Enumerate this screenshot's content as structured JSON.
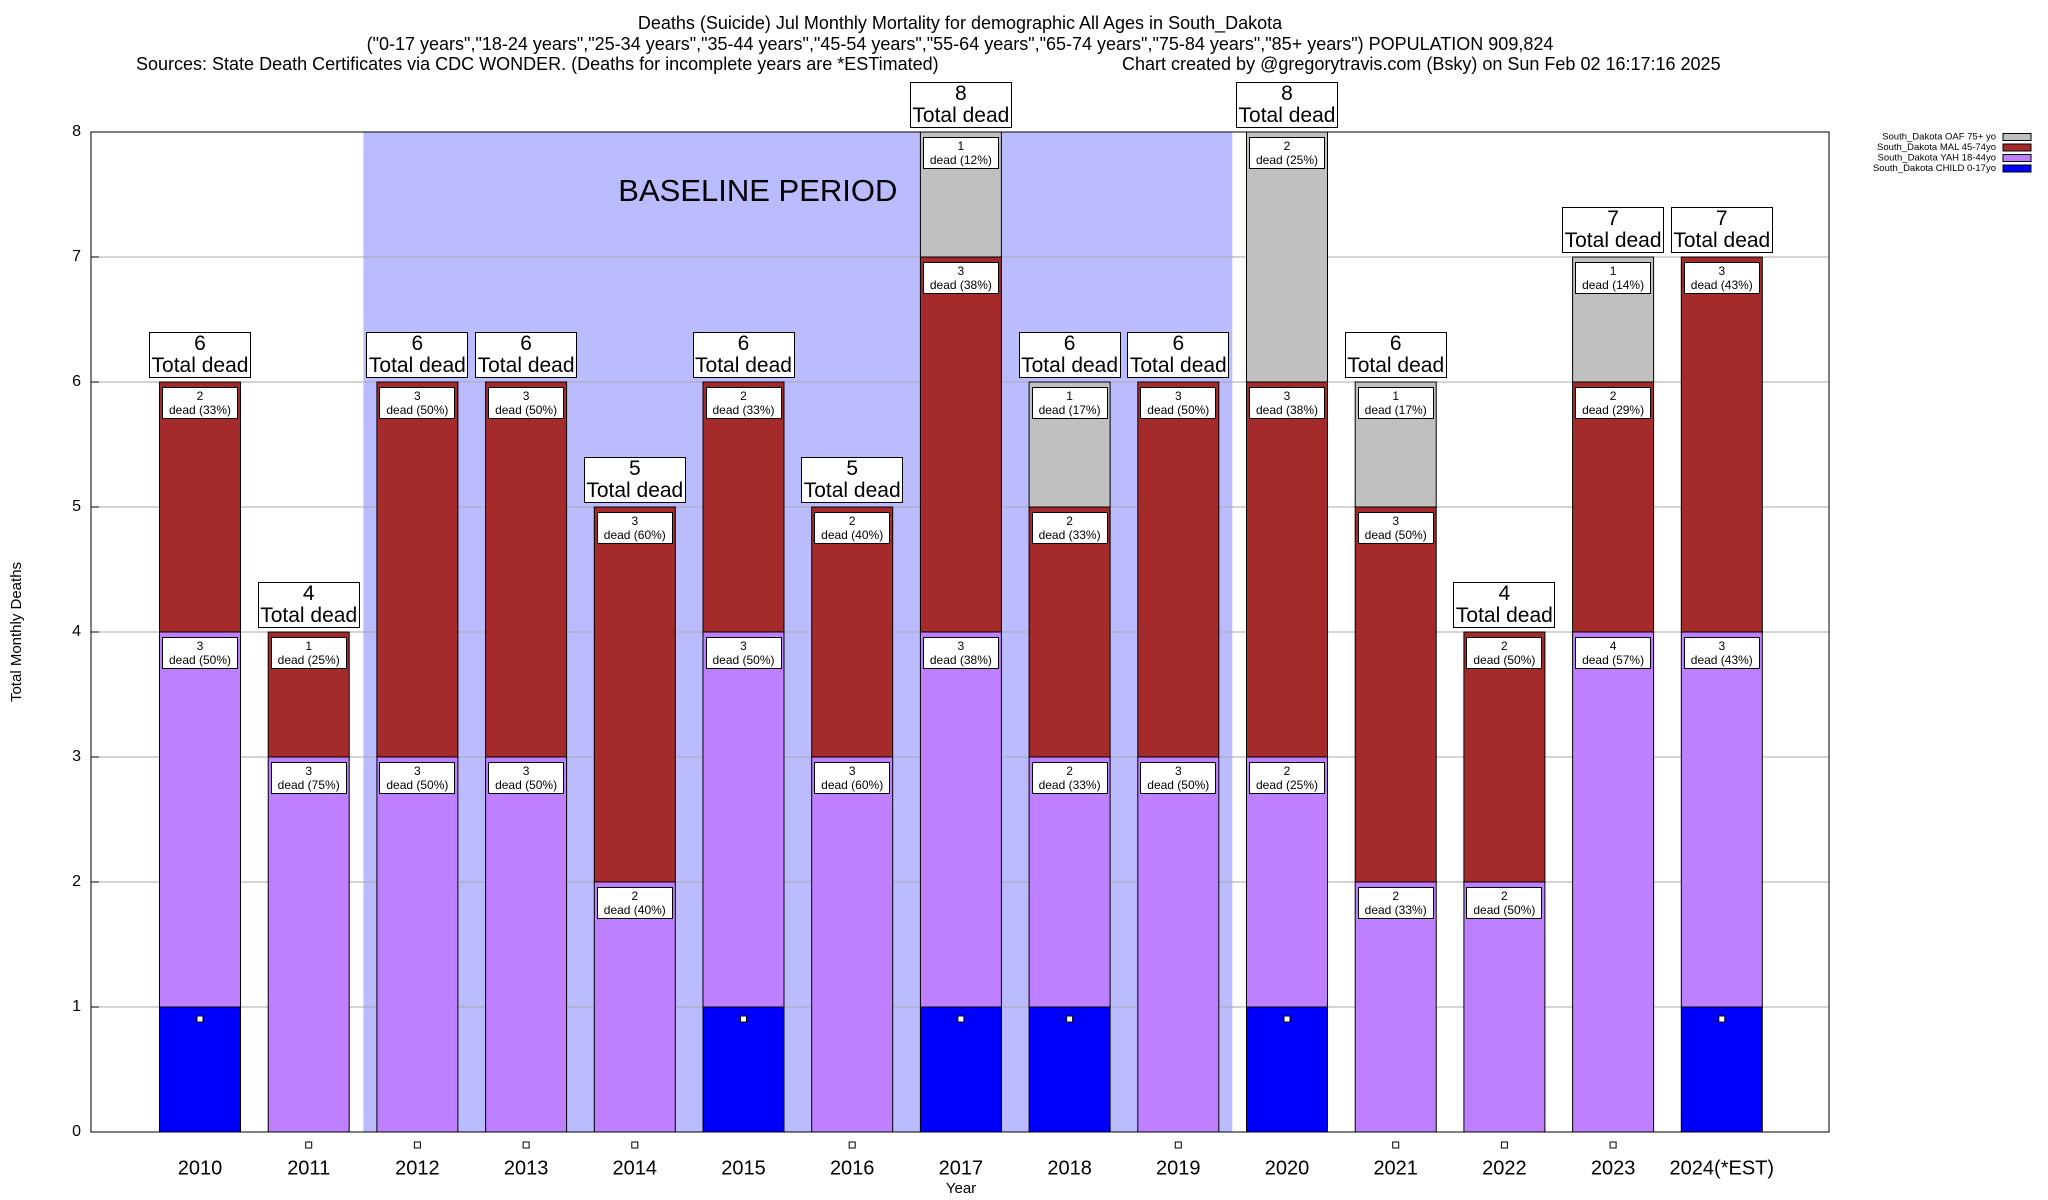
{
  "chart_data": {
    "type": "stacked_bar",
    "title": "Deaths (Suicide) Jul Monthly Mortality for demographic All Ages in South_Dakota",
    "subtitle": "(\"0-17 years\",\"18-24 years\",\"25-34 years\",\"35-44 years\",\"45-54 years\",\"55-64 years\",\"65-74 years\",\"75-84 years\",\"85+ years\") POPULATION 909,824",
    "source": "Sources: State Death Certificates via CDC WONDER. (Deaths for incomplete years are *ESTimated)",
    "credit": "Chart created by @gregorytravis.com (Bsky) on Sun Feb 02 16:17:16 2025",
    "x_label": "Year",
    "y_label": "Total Monthly Deaths",
    "categories": [
      "2010",
      "2011",
      "2012",
      "2013",
      "2014",
      "2015",
      "2016",
      "2017",
      "2018",
      "2019",
      "2020",
      "2021",
      "2022",
      "2023",
      "2024(*EST)"
    ],
    "series": [
      {
        "name": "South_Dakota CHILD 0-17yo",
        "color": "#0000ff",
        "values": [
          1,
          0,
          0,
          0,
          0,
          1,
          0,
          1,
          1,
          0,
          1,
          0,
          0,
          0,
          1
        ],
        "value_labels": [
          null,
          null,
          null,
          null,
          null,
          null,
          null,
          null,
          null,
          null,
          null,
          null,
          null,
          null,
          null
        ]
      },
      {
        "name": "South_Dakota YAH 18-44yo",
        "color": "#bf80ff",
        "values": [
          3,
          3,
          3,
          3,
          2,
          3,
          3,
          3,
          2,
          3,
          2,
          2,
          2,
          4,
          3
        ],
        "value_labels": [
          "3\ndead (50%)",
          "3\ndead (75%)",
          "3\ndead (50%)",
          "3\ndead (50%)",
          "2\ndead (40%)",
          "3\ndead (50%)",
          "3\ndead (60%)",
          "3\ndead (38%)",
          "2\ndead (33%)",
          "3\ndead (50%)",
          "2\ndead (25%)",
          "2\ndead (33%)",
          "2\ndead (50%)",
          "4\ndead (57%)",
          "3\ndead (43%)"
        ]
      },
      {
        "name": "South_Dakota MAL 45-74yo",
        "color": "#a52a2a",
        "values": [
          2,
          1,
          3,
          3,
          3,
          2,
          2,
          3,
          2,
          3,
          3,
          3,
          2,
          2,
          3
        ],
        "value_labels": [
          "2\ndead (33%)",
          "1\ndead (25%)",
          "3\ndead (50%)",
          "3\ndead (50%)",
          "3\ndead (60%)",
          "2\ndead (33%)",
          "2\ndead (40%)",
          "3\ndead (38%)",
          "2\ndead (33%)",
          "3\ndead (50%)",
          "3\ndead (38%)",
          "3\ndead (50%)",
          "2\ndead (50%)",
          "2\ndead (29%)",
          "3\ndead (43%)"
        ]
      },
      {
        "name": "South_Dakota OAF 75+ yo",
        "color": "#c0c0c0",
        "values": [
          0,
          0,
          0,
          0,
          0,
          0,
          0,
          1,
          1,
          0,
          2,
          1,
          0,
          1,
          0
        ],
        "value_labels": [
          null,
          null,
          null,
          null,
          null,
          null,
          null,
          "1\ndead (12%)",
          "1\ndead (17%)",
          null,
          "2\ndead (25%)",
          "1\ndead (17%)",
          null,
          "1\ndead (14%)",
          null
        ]
      }
    ],
    "totals": [
      6,
      4,
      6,
      6,
      5,
      6,
      5,
      8,
      6,
      6,
      8,
      6,
      4,
      7,
      7
    ],
    "total_label": "Total dead",
    "baseline": {
      "label": "BASELINE PERIOD",
      "start": "2012",
      "end": "2019"
    },
    "ylim": [
      0,
      8
    ],
    "yticks": [
      0,
      1,
      2,
      3,
      4,
      5,
      6,
      7,
      8
    ],
    "grid": true,
    "legend": "top-right"
  }
}
